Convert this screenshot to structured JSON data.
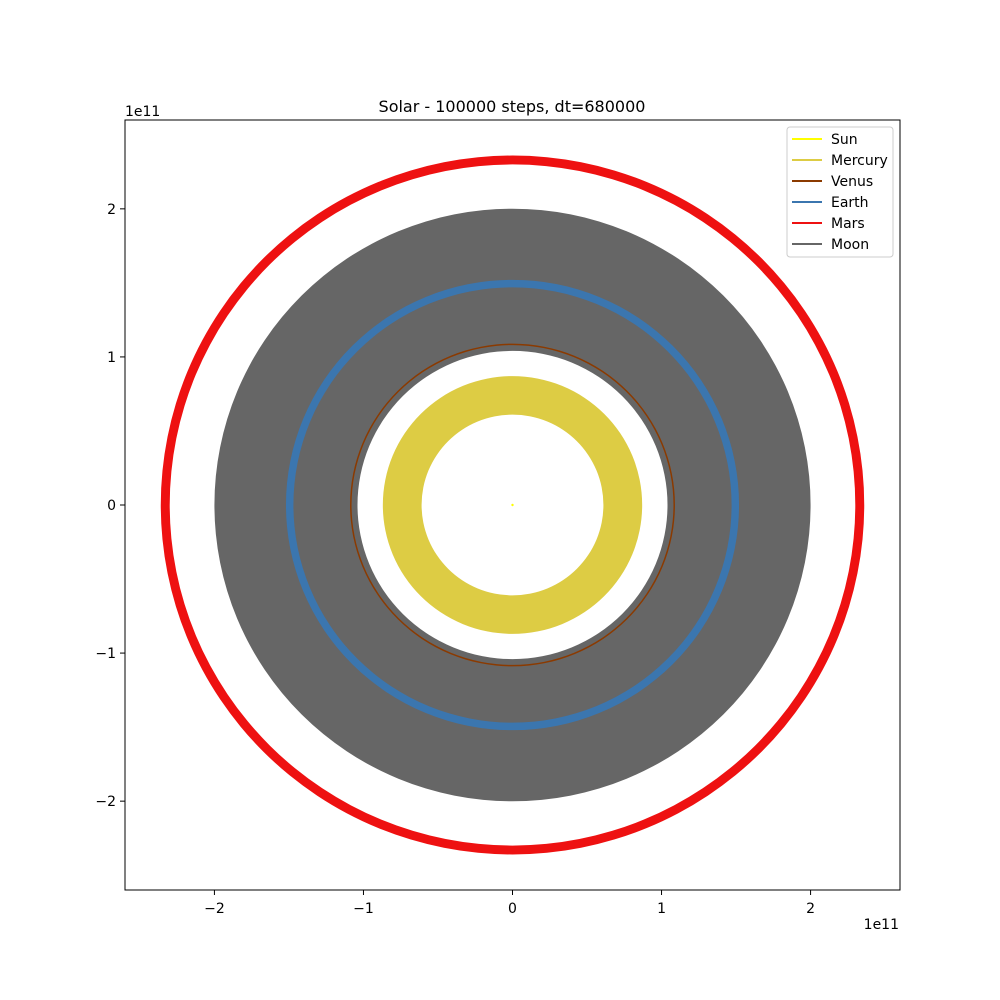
{
  "chart_data": {
    "type": "line",
    "title": "Solar - 100000 steps, dt=680000",
    "xlabel": "",
    "ylabel": "",
    "x_offset_label": "1e11",
    "y_offset_label": "1e11",
    "xlim": [
      -2.6,
      2.6
    ],
    "ylim": [
      -2.6,
      2.6
    ],
    "xticks": [
      -2,
      -1,
      0,
      1,
      2
    ],
    "yticks": [
      -2,
      -1,
      0,
      1,
      2
    ],
    "xtick_labels": [
      "−2",
      "−1",
      "0",
      "1",
      "2"
    ],
    "ytick_labels": [
      "−2",
      "−1",
      "0",
      "1",
      "2"
    ],
    "grid": false,
    "legend_position": "top-right",
    "series": [
      {
        "name": "Sun",
        "color": "#ffff00",
        "orbit_radius_inner": 0.0,
        "orbit_radius_outer": 0.01
      },
      {
        "name": "Mercury",
        "color": "#ddcc44",
        "orbit_radius_inner": 0.61,
        "orbit_radius_outer": 0.87
      },
      {
        "name": "Venus",
        "color": "#8b3a00",
        "orbit_radius_inner": 1.08,
        "orbit_radius_outer": 1.09
      },
      {
        "name": "Earth",
        "color": "#3b76af",
        "orbit_radius_inner": 1.47,
        "orbit_radius_outer": 1.52
      },
      {
        "name": "Mars",
        "color": "#ee1111",
        "orbit_radius_inner": 2.3,
        "orbit_radius_outer": 2.36
      },
      {
        "name": "Moon",
        "color": "#666666",
        "orbit_radius_inner": 1.04,
        "orbit_radius_outer": 2.0
      }
    ]
  }
}
